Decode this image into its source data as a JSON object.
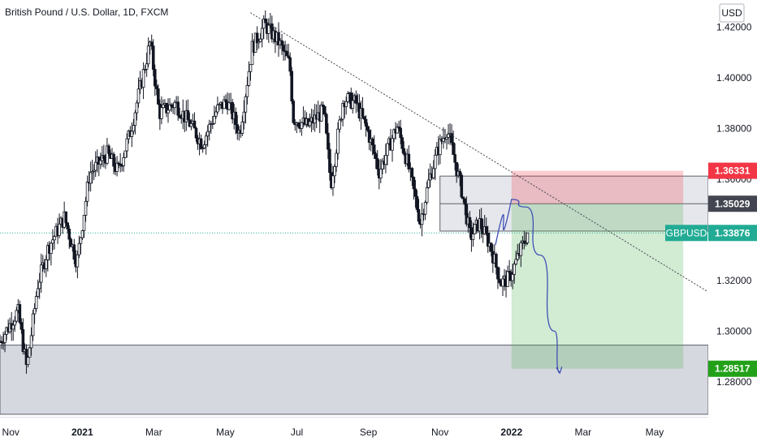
{
  "header": {
    "title": "British Pound / U.S. Dollar, 1D, FXCM"
  },
  "chart_data": {
    "type": "candlestick",
    "currency": "USD",
    "symbol_label": "GBPUSD",
    "y_ticks": [
      "1.42000",
      "1.40000",
      "1.38000",
      "1.36000",
      "1.34000",
      "1.32000",
      "1.30000",
      "1.28000"
    ],
    "y_tick_values": [
      1.42,
      1.4,
      1.38,
      1.36,
      1.34,
      1.32,
      1.3,
      1.28
    ],
    "ylim": [
      1.2662,
      1.4307
    ],
    "x_labels": [
      "Nov",
      "2021",
      "Mar",
      "May",
      "Jul",
      "Sep",
      "Nov",
      "2022",
      "Mar",
      "May"
    ],
    "x_label_months": [
      0,
      2,
      4,
      6,
      8,
      10,
      12,
      14,
      16,
      18
    ],
    "xlim_months": [
      -0.3,
      19.5
    ],
    "price_labels": {
      "stop": "1.36331",
      "entry": "1.35029",
      "current": "1.33876",
      "target": "1.28517"
    },
    "price_values": {
      "stop": 1.36331,
      "entry": 1.35029,
      "current": 1.33876,
      "target": 1.28517
    },
    "zones": [
      {
        "name": "resistance-zone",
        "from_month": 12.0,
        "to_month": 19.5,
        "low": 1.3395,
        "high": 1.3612
      },
      {
        "name": "support-zone",
        "from_month": -0.3,
        "to_month": 19.5,
        "low": 1.2672,
        "high": 1.2945
      }
    ],
    "position": {
      "from_month": 14.0,
      "to_month": 18.8,
      "stop": 1.36331,
      "entry": 1.35029,
      "target": 1.28517
    },
    "trendline": {
      "start": [
        6.7,
        1.4257
      ],
      "end": [
        19.45,
        1.3159
      ]
    },
    "projection": [
      [
        13.55,
        1.334
      ],
      [
        14.0,
        1.352
      ],
      [
        14.4,
        1.349
      ],
      [
        14.8,
        1.33
      ],
      [
        15.2,
        1.3
      ],
      [
        15.35,
        1.2835
      ]
    ],
    "ohlc_anchors": [
      [
        -0.3,
        1.296
      ],
      [
        0.2,
        1.308
      ],
      [
        0.45,
        1.285
      ],
      [
        0.75,
        1.318
      ],
      [
        1.05,
        1.333
      ],
      [
        1.5,
        1.345
      ],
      [
        1.85,
        1.327
      ],
      [
        2.2,
        1.362
      ],
      [
        2.7,
        1.37
      ],
      [
        3.0,
        1.363
      ],
      [
        3.35,
        1.379
      ],
      [
        3.9,
        1.414
      ],
      [
        4.15,
        1.386
      ],
      [
        4.6,
        1.39
      ],
      [
        5.05,
        1.381
      ],
      [
        5.35,
        1.374
      ],
      [
        5.75,
        1.387
      ],
      [
        6.05,
        1.391
      ],
      [
        6.4,
        1.378
      ],
      [
        6.75,
        1.412
      ],
      [
        7.1,
        1.421
      ],
      [
        7.5,
        1.414
      ],
      [
        7.8,
        1.405
      ],
      [
        7.9,
        1.384
      ],
      [
        8.3,
        1.381
      ],
      [
        8.75,
        1.387
      ],
      [
        8.95,
        1.358
      ],
      [
        9.3,
        1.392
      ],
      [
        9.65,
        1.39
      ],
      [
        10.0,
        1.378
      ],
      [
        10.3,
        1.363
      ],
      [
        10.8,
        1.381
      ],
      [
        11.1,
        1.366
      ],
      [
        11.45,
        1.343
      ],
      [
        11.7,
        1.36
      ],
      [
        11.95,
        1.372
      ],
      [
        12.2,
        1.38
      ],
      [
        12.6,
        1.356
      ],
      [
        12.85,
        1.337
      ],
      [
        13.1,
        1.343
      ],
      [
        13.4,
        1.334
      ],
      [
        13.7,
        1.319
      ],
      [
        13.95,
        1.321
      ],
      [
        14.2,
        1.33
      ],
      [
        14.45,
        1.339
      ]
    ]
  }
}
